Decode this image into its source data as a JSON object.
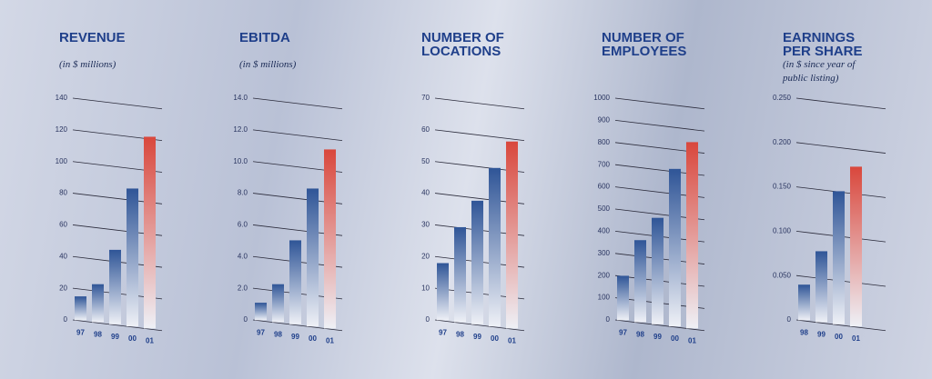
{
  "chart_data": [
    {
      "type": "bar",
      "title": "REVENUE",
      "subtitle": "(in $ millions)",
      "categories": [
        "97",
        "98",
        "99",
        "00",
        "01"
      ],
      "values": [
        15,
        24,
        47,
        87,
        121
      ],
      "colors": [
        "#2f5597",
        "#2f5597",
        "#2f5597",
        "#2f5597",
        "#d9473c"
      ],
      "ylim": [
        0,
        140
      ],
      "yticks": [
        0,
        20,
        40,
        60,
        80,
        100,
        120,
        140
      ],
      "grid": true
    },
    {
      "type": "bar",
      "title": "EBITDA",
      "subtitle": "(in $ millions)",
      "categories": [
        "97",
        "98",
        "99",
        "00",
        "01"
      ],
      "values": [
        1.1,
        2.4,
        5.3,
        8.7,
        11.3
      ],
      "colors": [
        "#2f5597",
        "#2f5597",
        "#2f5597",
        "#2f5597",
        "#d9473c"
      ],
      "ylim": [
        0,
        14
      ],
      "yticks": [
        0,
        {
          "value": 2,
          "label": "2.0"
        },
        {
          "value": 4,
          "label": "4.0"
        },
        {
          "value": 6,
          "label": "6.0"
        },
        {
          "value": 8,
          "label": "8.0"
        },
        {
          "value": 10,
          "label": "10.0"
        },
        {
          "value": 12,
          "label": "12.0"
        },
        {
          "value": 14,
          "label": "14.0"
        }
      ],
      "grid": true
    },
    {
      "type": "bar",
      "title": "NUMBER OF LOCATIONS",
      "categories": [
        "97",
        "98",
        "99",
        "00",
        "01"
      ],
      "values": [
        18,
        30,
        39,
        50,
        59
      ],
      "colors": [
        "#2f5597",
        "#2f5597",
        "#2f5597",
        "#2f5597",
        "#d9473c"
      ],
      "ylim": [
        0,
        70
      ],
      "yticks": [
        0,
        10,
        20,
        30,
        40,
        50,
        60,
        70
      ],
      "grid": true
    },
    {
      "type": "bar",
      "title": "NUMBER OF EMPLOYEES",
      "categories": [
        "97",
        "98",
        "99",
        "00",
        "01"
      ],
      "values": [
        200,
        370,
        480,
        710,
        840
      ],
      "colors": [
        "#2f5597",
        "#2f5597",
        "#2f5597",
        "#2f5597",
        "#d9473c"
      ],
      "ylim": [
        0,
        1000
      ],
      "yticks": [
        0,
        100,
        200,
        300,
        400,
        500,
        600,
        700,
        800,
        900,
        1000
      ],
      "grid": true
    },
    {
      "type": "bar",
      "title": "EARNINGS PER SHARE",
      "subtitle": "(in $ since year of public listing)",
      "categories": [
        "98",
        "99",
        "00",
        "01"
      ],
      "values": [
        0.04,
        0.08,
        0.15,
        0.18
      ],
      "colors": [
        "#2f5597",
        "#2f5597",
        "#2f5597",
        "#d9473c"
      ],
      "ylim": [
        0,
        0.25
      ],
      "yticks": [
        0,
        {
          "value": 0.05,
          "label": "0.050"
        },
        {
          "value": 0.1,
          "label": "0.100"
        },
        {
          "value": 0.15,
          "label": "0.150"
        },
        {
          "value": 0.2,
          "label": "0.200"
        },
        {
          "value": 0.25,
          "label": "0.250"
        }
      ],
      "grid": true
    }
  ]
}
